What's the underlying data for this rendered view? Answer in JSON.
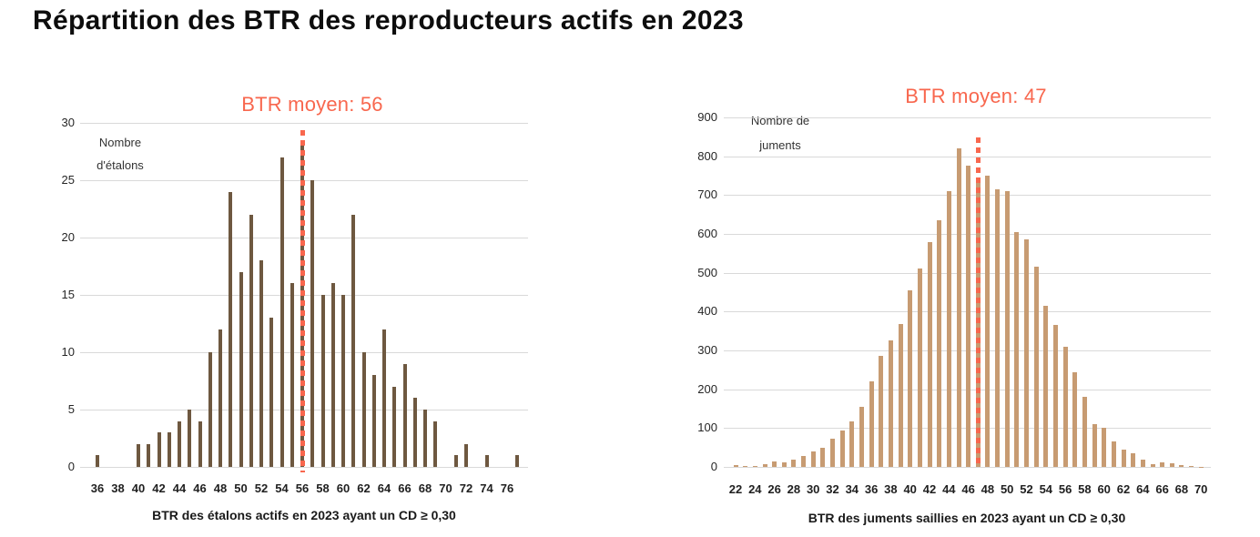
{
  "page_title": "Répartition des BTR des reproducteurs actifs en 2023",
  "colors": {
    "stallion_bars": "#6E5840",
    "mare_bars": "#C79B72",
    "mean_accent": "#F8674E",
    "gridline": "#D9D9D9",
    "title_text": "#0D0D0D",
    "axis_text": "#262626"
  },
  "chart_data": [
    {
      "type": "bar",
      "name": "stallions_btr_distribution",
      "ylabel_line1": "Nombre",
      "ylabel_line2": "d'étalons",
      "xlabel": "BTR des étalons actifs en 2023 ayant un CD ≥ 0,30",
      "mean_label": "BTR moyen: 56",
      "mean_value": 56,
      "x_first": 36,
      "x_last": 77,
      "values": [
        1,
        0,
        0,
        0,
        2,
        2,
        3,
        3,
        4,
        5,
        4,
        10,
        12,
        24,
        17,
        22,
        18,
        13,
        27,
        16,
        28,
        25,
        15,
        16,
        15,
        22,
        10,
        8,
        12,
        7,
        9,
        6,
        5,
        4,
        0,
        1,
        2,
        0,
        1,
        0,
        0,
        1
      ],
      "xticks": [
        36,
        38,
        40,
        42,
        44,
        46,
        48,
        50,
        52,
        54,
        56,
        58,
        60,
        62,
        64,
        66,
        68,
        70,
        72,
        74,
        76
      ],
      "yticks": [
        0,
        5,
        10,
        15,
        20,
        25,
        30
      ],
      "ylim": [
        0,
        30
      ],
      "grid": true,
      "legend_position": "none",
      "bar_color": "#6E5840"
    },
    {
      "type": "bar",
      "name": "mares_btr_distribution",
      "ylabel_line1": "Nombre de",
      "ylabel_line2": "juments",
      "xlabel": "BTR des juments saillies en 2023 ayant un CD ≥ 0,30",
      "mean_label": "BTR moyen: 47",
      "mean_value": 47,
      "x_first": 22,
      "x_last": 70,
      "values": [
        5,
        2,
        3,
        6,
        14,
        12,
        18,
        28,
        40,
        50,
        73,
        95,
        118,
        155,
        220,
        285,
        325,
        367,
        455,
        510,
        578,
        635,
        710,
        820,
        775,
        735,
        750,
        715,
        710,
        605,
        585,
        515,
        415,
        365,
        310,
        245,
        180,
        110,
        100,
        65,
        45,
        35,
        18,
        8,
        12,
        9,
        5,
        2,
        1
      ],
      "xticks": [
        22,
        24,
        26,
        28,
        30,
        32,
        34,
        36,
        38,
        40,
        42,
        44,
        46,
        48,
        50,
        52,
        54,
        56,
        58,
        60,
        62,
        64,
        66,
        68,
        70
      ],
      "yticks": [
        0,
        100,
        200,
        300,
        400,
        500,
        600,
        700,
        800,
        900
      ],
      "ylim": [
        0,
        900
      ],
      "grid": true,
      "legend_position": "none",
      "bar_color": "#C79B72"
    }
  ]
}
